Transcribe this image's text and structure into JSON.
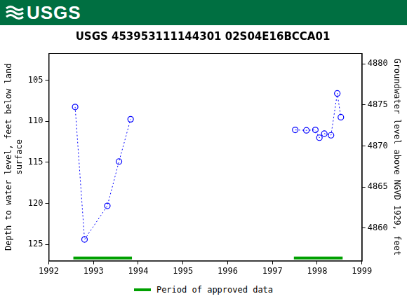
{
  "banner": "USGS",
  "chart_data": {
    "type": "line",
    "title": "USGS 453953111144301 02S04E16BCCA01",
    "x": [
      1992.59,
      1992.8,
      1993.31,
      1993.57,
      1993.83,
      null,
      1997.51,
      1997.76,
      1997.96,
      1998.05,
      1998.16,
      1998.31,
      1998.45,
      1998.53
    ],
    "values": [
      108.25,
      124.4,
      120.3,
      114.9,
      109.75,
      null,
      111.05,
      111.1,
      111.05,
      112.0,
      111.5,
      111.7,
      106.6,
      109.5
    ],
    "color": "#0000ff",
    "marker": "circle",
    "line_style": "dotted",
    "ylabel": [
      "Depth to water level, feet below land",
      "surface"
    ],
    "y2label": "Groundwater level above NGVD 1929, feet",
    "xlim": [
      1992,
      1999
    ],
    "xticks": [
      1992,
      1993,
      1994,
      1995,
      1996,
      1997,
      1998,
      1999
    ],
    "ylim": [
      127.0,
      101.7
    ],
    "yticks": [
      105,
      110,
      115,
      120,
      125
    ],
    "y2lim": [
      4856.0,
      4881.3
    ],
    "y2ticks": [
      4860,
      4865,
      4870,
      4875,
      4880
    ],
    "grid": false,
    "legend": "bottom",
    "approved_periods": {
      "name": "Period of approved data",
      "color": "#00a000",
      "ranges": [
        [
          1992.55,
          1993.86
        ],
        [
          1997.48,
          1998.57
        ]
      ]
    }
  }
}
